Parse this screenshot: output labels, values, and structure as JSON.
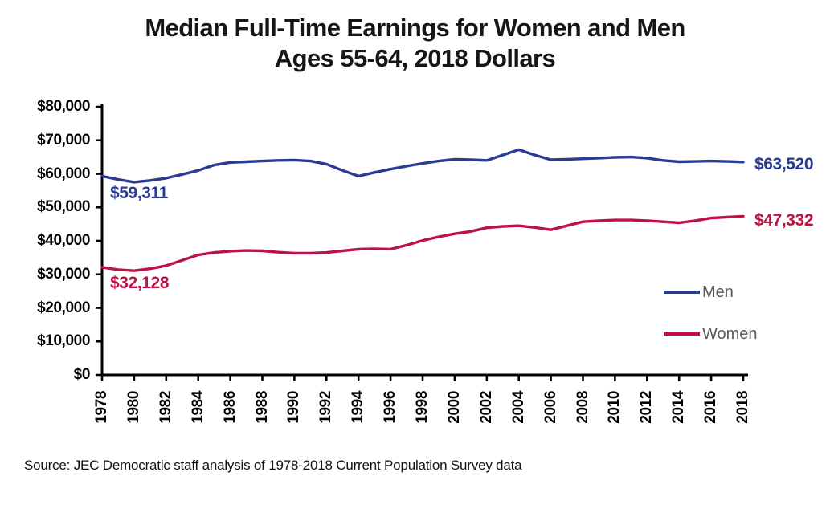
{
  "title": {
    "line1": "Median Full-Time Earnings for Women and Men",
    "line2": "Ages 55-64, 2018 Dollars"
  },
  "source_note": "Source: JEC Democratic staff analysis of 1978-2018 Current Population Survey data",
  "chart_data": {
    "type": "line",
    "title": "Median Full-Time Earnings for Women and Men Ages 55-64, 2018 Dollars",
    "x": [
      1978,
      1979,
      1980,
      1981,
      1982,
      1983,
      1984,
      1985,
      1986,
      1987,
      1988,
      1989,
      1990,
      1991,
      1992,
      1993,
      1994,
      1995,
      1996,
      1997,
      1998,
      1999,
      2000,
      2001,
      2002,
      2003,
      2004,
      2005,
      2006,
      2007,
      2008,
      2009,
      2010,
      2011,
      2012,
      2013,
      2014,
      2015,
      2016,
      2017,
      2018
    ],
    "series": [
      {
        "name": "Men",
        "color": "#2a3c91",
        "values": [
          59311,
          58300,
          57500,
          58000,
          58700,
          59800,
          61000,
          62600,
          63400,
          63600,
          63800,
          64000,
          64100,
          63800,
          62900,
          61000,
          59300,
          60400,
          61400,
          62300,
          63100,
          63800,
          64300,
          64200,
          64000,
          65600,
          67200,
          65600,
          64200,
          64300,
          64500,
          64700,
          64900,
          65000,
          64700,
          64000,
          63600,
          63700,
          63800,
          63700,
          63520
        ]
      },
      {
        "name": "Women",
        "color": "#be1242",
        "values": [
          32128,
          31400,
          31100,
          31700,
          32600,
          34200,
          35800,
          36500,
          36900,
          37100,
          37000,
          36600,
          36300,
          36300,
          36500,
          37000,
          37500,
          37600,
          37500,
          38700,
          40100,
          41200,
          42100,
          42800,
          43900,
          44300,
          44500,
          44000,
          43300,
          44500,
          45700,
          46000,
          46200,
          46200,
          46000,
          45700,
          45400,
          46000,
          46800,
          47100,
          47332
        ]
      }
    ],
    "xticks": [
      1978,
      1980,
      1982,
      1984,
      1986,
      1988,
      1990,
      1992,
      1994,
      1996,
      1998,
      2000,
      2002,
      2004,
      2006,
      2008,
      2010,
      2012,
      2014,
      2016,
      2018
    ],
    "yticks": [
      0,
      10000,
      20000,
      30000,
      40000,
      50000,
      60000,
      70000,
      80000
    ],
    "ytick_labels": [
      "$0",
      "$10,000",
      "$20,000",
      "$30,000",
      "$40,000",
      "$50,000",
      "$60,000",
      "$70,000",
      "$80,000"
    ],
    "xlim": [
      1978,
      2018
    ],
    "ylim": [
      0,
      80000
    ],
    "xlabel": "",
    "ylabel": "",
    "grid": false,
    "axis_color": "#000000",
    "legend_position": "right-middle",
    "annotations": [
      {
        "text": "$59,311",
        "series": "Men",
        "position": "start",
        "year": 1978
      },
      {
        "text": "$63,520",
        "series": "Men",
        "position": "end",
        "year": 2018
      },
      {
        "text": "$32,128",
        "series": "Women",
        "position": "start",
        "year": 1978
      },
      {
        "text": "$47,332",
        "series": "Women",
        "position": "end",
        "year": 2018
      }
    ]
  }
}
